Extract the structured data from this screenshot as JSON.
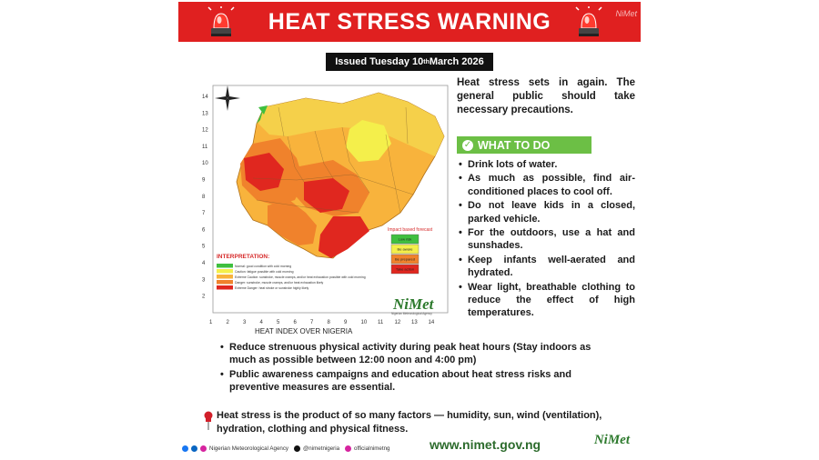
{
  "banner": {
    "title": "HEAT STRESS WARNING",
    "corner_logo": "NiMet"
  },
  "issued": {
    "prefix": "Issued Tuesday 10",
    "sup": "th",
    "suffix": " March 2026"
  },
  "map": {
    "caption": "HEAT INDEX OVER NIGERIA",
    "y_ticks": [
      "14",
      "13",
      "12",
      "11",
      "10",
      "9",
      "8",
      "7",
      "6",
      "5",
      "4",
      "3",
      "2"
    ],
    "x_ticks": [
      "1",
      "2",
      "3",
      "4",
      "5",
      "6",
      "7",
      "8",
      "9",
      "10",
      "11",
      "12",
      "13",
      "14"
    ],
    "interpretation_title": "INTERPRETATION:",
    "legend": [
      {
        "color": "#3fbf3f",
        "text": "Normal: good condition with cold morning"
      },
      {
        "color": "#f4ef4b",
        "text": "Caution: fatigue possible with cold morning"
      },
      {
        "color": "#f8b33c",
        "text": "Extreme Caution: sunstroke, muscle cramps, and/or heat exhaustion possible with cold morning"
      },
      {
        "color": "#f0822c",
        "text": "Danger: sunstroke, muscle cramps, and/or heat exhaustion likely"
      },
      {
        "color": "#e0271f",
        "text": "Extreme Danger: heat stroke or sunstroke highly likely"
      }
    ],
    "impact_title": "Impact based forecast",
    "impact_legend": [
      {
        "color": "#3fbf3f",
        "text": "Low risk"
      },
      {
        "color": "#f4ef4b",
        "text": "Be aware"
      },
      {
        "color": "#f0822c",
        "text": "Be prepared"
      },
      {
        "color": "#e0271f",
        "text": "Take action"
      }
    ],
    "logo": "NiMet",
    "logo_sub": "Nigerian Meteorological Agency"
  },
  "intro": "Heat stress sets in again. The general public should take necessary precautions.",
  "what_to_do": {
    "label": "WHAT TO DO"
  },
  "tips": [
    "Drink lots of water.",
    "As much as possible, find air-conditioned places to cool off.",
    "Do not leave kids in a closed, parked vehicle.",
    "For the outdoors, use a hat and sunshades.",
    "Keep infants well-aerated and hydrated.",
    "Wear light, breathable clothing to reduce the effect of high temperatures."
  ],
  "advice": [
    "Reduce strenuous physical activity during peak heat hours (Stay indoors as much as possible between 12:00 noon and 4:00 pm)",
    "Public awareness campaigns and education about heat stress risks and preventive measures are essential."
  ],
  "factors": "Heat stress is the product of so many factors — humidity, sun, wind (ventilation), hydration, clothing and physical fitness.",
  "footer": {
    "agency": "Nigerian Meteorological Agency",
    "twitter": "@nimetnigeria",
    "instagram": "officialnimetng",
    "website": "www.nimet.gov.ng",
    "logo": "NiMet"
  },
  "colors": {
    "banner": "#e02020",
    "what_to_do": "#6cbf45",
    "website": "#2c6b2c"
  }
}
